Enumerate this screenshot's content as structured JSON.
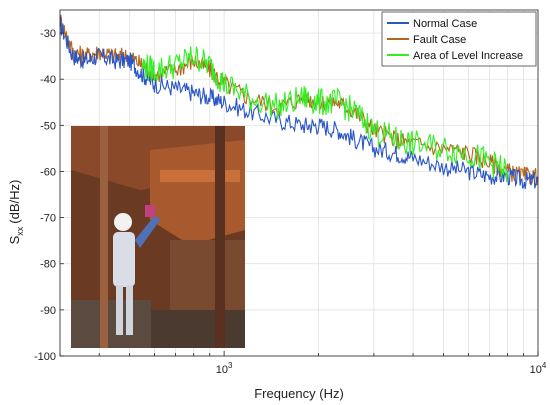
{
  "chart_data": {
    "type": "line",
    "title": "",
    "xlabel": "Frequency (Hz)",
    "ylabel_main": "S",
    "ylabel_sub": "xx",
    "ylabel_unit": "(dB/Hz)",
    "xscale": "log",
    "xlim": [
      300,
      10000
    ],
    "ylim": [
      -100,
      -25
    ],
    "grid": true,
    "legend_position": "top-right",
    "yticks": [
      -100,
      -90,
      -80,
      -70,
      -60,
      -50,
      -40,
      -30
    ],
    "ytick_labels": [
      "-100",
      "-90",
      "-80",
      "-70",
      "-60",
      "-50",
      "-40",
      "-30"
    ],
    "xtick_labels": [
      {
        "value": 1000,
        "base": "10",
        "exp": "3"
      },
      {
        "value": 10000,
        "base": "10",
        "exp": "4"
      }
    ],
    "series": [
      {
        "name": "Normal Case",
        "color": "#2a56c6",
        "x": [
          300,
          330,
          360,
          400,
          450,
          500,
          550,
          600,
          700,
          800,
          900,
          1000,
          1200,
          1500,
          1800,
          2000,
          2300,
          2600,
          3000,
          3500,
          4000,
          5000,
          6000,
          7000,
          8000,
          9000,
          10000
        ],
        "y": [
          -28,
          -35,
          -36,
          -35,
          -36,
          -36,
          -39,
          -41,
          -42,
          -43,
          -44,
          -45,
          -47,
          -49,
          -50,
          -50,
          -51,
          -53,
          -55,
          -56,
          -57,
          -59,
          -60,
          -61,
          -61,
          -62,
          -62
        ]
      },
      {
        "name": "Fault Case",
        "color": "#b5651d",
        "x": [
          300,
          330,
          360,
          400,
          450,
          500,
          550,
          600,
          700,
          800,
          900,
          1000,
          1200,
          1500,
          1800,
          2000,
          2300,
          2600,
          3000,
          3500,
          4000,
          5000,
          6000,
          7000,
          8000,
          9000,
          10000
        ],
        "y": [
          -27,
          -34,
          -35,
          -34,
          -35,
          -35,
          -37,
          -39,
          -38,
          -36,
          -38,
          -41,
          -44,
          -46,
          -44,
          -45,
          -45,
          -47,
          -51,
          -53,
          -54,
          -55,
          -56,
          -58,
          -60,
          -61,
          -61
        ]
      },
      {
        "name": "Area of Level Increase",
        "color": "#33ee22",
        "x": [
          550,
          600,
          700,
          800,
          900,
          1000,
          1200,
          1500,
          1800,
          2000,
          2300,
          2600,
          3000,
          3500,
          4000,
          5000,
          6000,
          7000,
          8000
        ],
        "y": [
          -37,
          -38,
          -37,
          -35,
          -37,
          -41,
          -44,
          -46,
          -44,
          -45,
          -45,
          -47,
          -51,
          -53,
          -54,
          -55,
          -56,
          -58,
          -60
        ]
      }
    ]
  },
  "photo": {
    "description_icon": "worker-at-machinery-photo-icon"
  }
}
